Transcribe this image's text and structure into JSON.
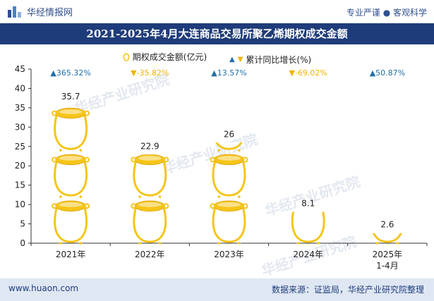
{
  "header": {
    "brand": "华经情报网",
    "tagline": "专业严谨 ● 客观科学"
  },
  "footer": {
    "website": "www.huaon.com",
    "source": "数据来源：证监局，华经产业研究院整理"
  },
  "watermark": "华经产业研究院",
  "colors": {
    "title_bg": "#1f3c7a",
    "pot": "#f5c518",
    "pot_outline": "#e2a50d",
    "up": "#1f6fa8",
    "down": "#f0b400",
    "footer_bg": "#dfe7f3"
  },
  "chart_data": {
    "type": "bar",
    "title": "2021-2025年4月大连商品交易所聚乙烯期权成交金额",
    "categories": [
      "2021年",
      "2022年",
      "2023年",
      "2024年",
      "2025年\n1-4月"
    ],
    "series": [
      {
        "name": "期权成交金额(亿元)",
        "values": [
          35.7,
          22.9,
          26,
          8.1,
          2.6
        ]
      }
    ],
    "yoy": {
      "name": "累计同比增长(%)",
      "labels": [
        "▲365.32%",
        "▼-35.82%",
        "▲13.57%",
        "▼-69.02%",
        "▲50.87%"
      ],
      "direction": [
        "up",
        "down",
        "up",
        "down",
        "up"
      ]
    },
    "legend": {
      "bar_label": "期权成交金额(亿元)",
      "line_label": "累计同比增长(%)"
    },
    "ylim": [
      0,
      45
    ],
    "yticks": [
      0,
      5,
      10,
      15,
      20,
      25,
      30,
      35,
      40,
      45
    ],
    "xlabel": "",
    "ylabel": "",
    "grid": false
  }
}
